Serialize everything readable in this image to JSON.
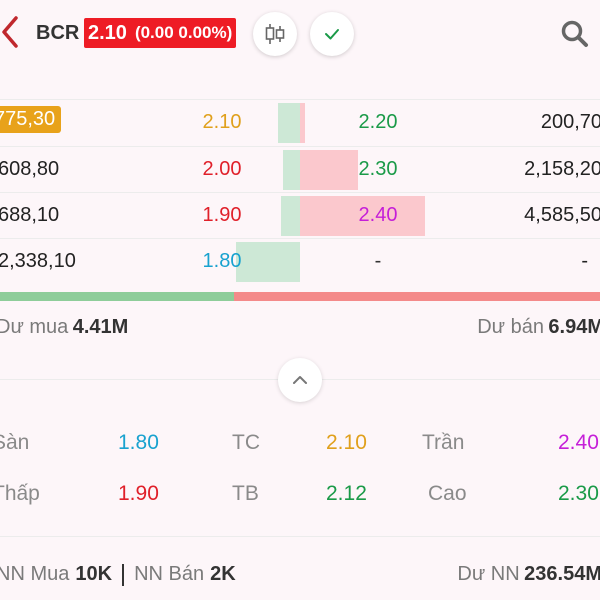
{
  "header": {
    "ticker": "BCR",
    "price": "2.10",
    "change": "(0.00 0.00%)"
  },
  "orderbook": [
    {
      "bid_vol": "775,30",
      "bid_price": "2.10",
      "ask_price": "2.20",
      "ask_vol": "200,70",
      "bid_color": "#e0a01c",
      "ask_color": "#1a9a48"
    },
    {
      "bid_vol": "608,80",
      "bid_price": "2.00",
      "ask_price": "2.30",
      "ask_vol": "2,158,20",
      "bid_color": "#e0202a",
      "ask_color": "#1a9a48"
    },
    {
      "bid_vol": "688,10",
      "bid_price": "1.90",
      "ask_price": "2.40",
      "ask_vol": "4,585,50",
      "bid_color": "#e0202a",
      "ask_color": "#c51fd8"
    },
    {
      "bid_vol": "2,338,10",
      "bid_price": "1.80",
      "ask_price": "-",
      "ask_vol": "-",
      "bid_color": "#19a2cf",
      "ask_color": "#333333"
    }
  ],
  "totals": {
    "buy_label": "Dư mua",
    "buy_value": "4.41M",
    "sell_label": "Dư bán",
    "sell_value": "6.94M",
    "buy_share": 0.39
  },
  "stats": {
    "san_label": "Sàn",
    "san_value": "1.80",
    "tc_label": "TC",
    "tc_value": "2.10",
    "tran_label": "Trần",
    "tran_value": "2.40",
    "thap_label": "Thấp",
    "thap_value": "1.90",
    "tb_label": "TB",
    "tb_value": "2.12",
    "cao_label": "Cao",
    "cao_value": "2.30"
  },
  "foreign": {
    "buy_label": "NN Mua",
    "buy_value": "10K",
    "sell_label": "NN Bán",
    "sell_value": "2K",
    "net_label": "Dư NN",
    "net_value": "236.54M"
  },
  "icons": {
    "back": "chevron-left-icon",
    "candlestick": "candlestick-icon",
    "check": "check-icon",
    "search": "search-icon",
    "collapse": "chevron-up-icon"
  }
}
